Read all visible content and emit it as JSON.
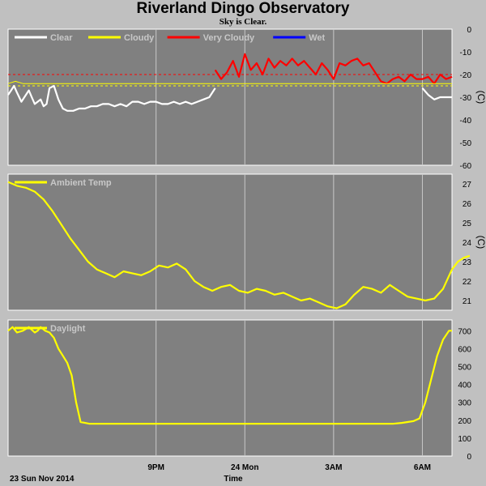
{
  "title": "Riverland Dingo Observatory",
  "subtitle": "Sky is Clear.",
  "footer": {
    "date": "23 Sun Nov 2014",
    "time_label": "Time"
  },
  "x_ticks": [
    {
      "t": 5.0,
      "label": "9PM"
    },
    {
      "t": 8.0,
      "label": "24 Mon"
    },
    {
      "t": 11.0,
      "label": "3AM"
    },
    {
      "t": 14.0,
      "label": "6AM"
    }
  ],
  "x_range_hours": [
    0,
    15.0
  ],
  "chart_data": [
    {
      "type": "line",
      "id": "cloud",
      "legend_placement": "top-left",
      "legend": [
        {
          "label": "Clear",
          "color": "#ffffff"
        },
        {
          "label": "Cloudy",
          "color": "#ffff00"
        },
        {
          "label": "Very Cloudy",
          "color": "#ff0000"
        },
        {
          "label": "Wet",
          "color": "#0000ff"
        }
      ],
      "ylabel": "(C)",
      "ylim": [
        -60,
        0
      ],
      "yticks": [
        0,
        -10,
        -20,
        -30,
        -40,
        -50,
        -60
      ],
      "thresholds": [
        {
          "value": -20,
          "color": "#ff0000"
        },
        {
          "value": -25,
          "color": "#ffff00"
        }
      ],
      "segments": [
        {
          "color": "#ffffff",
          "x": [
            0.0,
            0.1,
            0.2,
            0.3,
            0.45,
            0.55,
            0.7,
            0.8,
            0.9,
            1.0,
            1.1,
            1.2,
            1.3,
            1.4,
            1.55,
            1.7,
            1.85,
            2.0,
            2.2,
            2.4,
            2.6,
            2.8,
            3.0,
            3.2,
            3.4,
            3.6,
            3.8,
            4.0,
            4.2,
            4.4,
            4.6,
            4.8,
            5.0,
            5.2,
            5.4,
            5.6,
            5.8,
            6.0,
            6.2,
            6.4,
            6.6,
            6.8,
            7.0
          ],
          "y": [
            -29,
            -27,
            -25,
            -28,
            -32,
            -30,
            -27,
            -30,
            -33,
            -32,
            -31,
            -34,
            -33,
            -26,
            -25,
            -31,
            -35,
            -36,
            -36,
            -35,
            -35,
            -34,
            -34,
            -33,
            -33,
            -34,
            -33,
            -34,
            -32,
            -32,
            -33,
            -32,
            -32,
            -33,
            -33,
            -32,
            -33,
            -32,
            -33,
            -32,
            -31,
            -30,
            -26
          ]
        },
        {
          "color": "#ff0000",
          "x": [
            7.0,
            7.2,
            7.4,
            7.6,
            7.8,
            8.0,
            8.2,
            8.4,
            8.6,
            8.8,
            9.0,
            9.2,
            9.4,
            9.6,
            9.8,
            10.0,
            10.2,
            10.4,
            10.6,
            10.8,
            11.0,
            11.2,
            11.4,
            11.6,
            11.8,
            12.0,
            12.2,
            12.4,
            12.6,
            12.8,
            13.0,
            13.2,
            13.4,
            13.6,
            13.8,
            14.0,
            14.2,
            14.4,
            14.6,
            14.8,
            15.0
          ],
          "y": [
            -18,
            -22,
            -19,
            -14,
            -21,
            -11,
            -18,
            -15,
            -20,
            -13,
            -17,
            -14,
            -16,
            -13,
            -16,
            -14,
            -17,
            -20,
            -15,
            -18,
            -22,
            -15,
            -16,
            -14,
            -13,
            -16,
            -15,
            -19,
            -23,
            -24,
            -22,
            -21,
            -23,
            -20,
            -22,
            -22,
            -21,
            -24,
            -20,
            -22,
            -21
          ]
        },
        {
          "color": "#ffff00",
          "x": [
            0.0,
            0.25,
            0.5,
            0.75,
            1.0,
            1.25,
            1.5,
            1.75,
            2.0,
            2.25,
            2.5,
            2.75,
            3.0,
            3.25,
            3.5,
            3.75,
            4.0,
            4.25,
            4.5,
            4.75,
            5.0,
            5.25,
            5.5,
            5.75,
            6.0,
            6.25,
            6.5,
            6.75,
            7.0,
            7.25,
            7.5,
            7.75,
            8.0,
            8.25,
            8.5,
            8.75,
            9.0,
            9.25,
            9.5,
            9.75,
            10.0,
            10.25,
            10.5,
            10.75,
            11.0,
            11.25,
            11.5,
            11.75,
            12.0,
            12.25,
            12.5,
            12.75,
            13.0,
            13.25,
            13.5,
            13.75,
            14.0,
            14.25,
            14.5,
            14.75,
            15.0
          ],
          "y": [
            -24,
            -23,
            -24,
            -24,
            -24,
            -24,
            -24,
            -24,
            -24,
            -24,
            -24,
            -24,
            -24,
            -24,
            -24,
            -24,
            -24,
            -24,
            -24,
            -24,
            -24,
            -24,
            -24,
            -24,
            -24,
            -24,
            -24,
            -24,
            -24,
            -24,
            -24,
            -24,
            -24,
            -24,
            -24,
            -24,
            -24,
            -24,
            -24,
            -24,
            -24,
            -24,
            -24,
            -24,
            -24,
            -24,
            -24,
            -24,
            -24,
            -24,
            -24,
            -24,
            -24,
            -24,
            -24,
            -24,
            -24,
            -24,
            -24,
            -24,
            -24
          ]
        },
        {
          "color": "#ffffff",
          "x": [
            14.0,
            14.2,
            14.4,
            14.6,
            14.8,
            15.0
          ],
          "y": [
            -26,
            -29,
            -31,
            -30,
            -30,
            -30
          ]
        }
      ]
    },
    {
      "type": "line",
      "id": "temp",
      "legend_placement": "top-left",
      "legend": [
        {
          "label": "Ambient Temp",
          "color": "#ffff00"
        }
      ],
      "ylabel": "(C)",
      "ylim": [
        20.5,
        27.5
      ],
      "yticks": [
        21,
        22,
        23,
        24,
        25,
        26,
        27
      ],
      "series": [
        {
          "color": "#ffff00",
          "x": [
            0.0,
            0.3,
            0.6,
            0.9,
            1.2,
            1.5,
            1.8,
            2.1,
            2.4,
            2.7,
            3.0,
            3.3,
            3.6,
            3.9,
            4.2,
            4.5,
            4.8,
            5.1,
            5.4,
            5.7,
            6.0,
            6.3,
            6.6,
            6.9,
            7.2,
            7.5,
            7.8,
            8.1,
            8.4,
            8.7,
            9.0,
            9.3,
            9.6,
            9.9,
            10.2,
            10.5,
            10.8,
            11.1,
            11.4,
            11.7,
            12.0,
            12.3,
            12.6,
            12.9,
            13.2,
            13.5,
            13.8,
            14.1,
            14.4,
            14.7,
            15.0
          ],
          "y": [
            27.1,
            26.9,
            26.8,
            26.6,
            26.2,
            25.6,
            24.9,
            24.2,
            23.6,
            23.0,
            22.6,
            22.4,
            22.2,
            22.5,
            22.4,
            22.3,
            22.5,
            22.8,
            22.7,
            22.9,
            22.6,
            22.0,
            21.7,
            21.5,
            21.7,
            21.8,
            21.5,
            21.4,
            21.6,
            21.5,
            21.3,
            21.4,
            21.2,
            21.0,
            21.1,
            20.9,
            20.7,
            20.6,
            20.8,
            21.3,
            21.7,
            21.6,
            21.4,
            21.8,
            21.5,
            21.2,
            21.1,
            21.0,
            21.1,
            21.6,
            22.6
          ]
        },
        {
          "color": "#ffff00",
          "x": [
            15.0,
            15.2,
            15.4,
            15.6
          ],
          "y": [
            22.6,
            23.0,
            23.2,
            23.3
          ]
        }
      ]
    },
    {
      "type": "line",
      "id": "daylight",
      "legend_placement": "top-left",
      "legend": [
        {
          "label": "Daylight",
          "color": "#ffff00"
        }
      ],
      "ylabel": "",
      "ylim": [
        0,
        760
      ],
      "yticks": [
        0,
        100,
        200,
        300,
        400,
        500,
        600,
        700
      ],
      "series": [
        {
          "color": "#ffff00",
          "x": [
            0.0,
            0.15,
            0.3,
            0.5,
            0.7,
            0.9,
            1.0,
            1.1,
            1.25,
            1.4,
            1.55,
            1.7,
            1.85,
            2.0,
            2.15,
            2.3,
            2.45,
            2.6,
            2.75,
            2.9,
            3.0,
            3.2,
            3.4,
            3.6,
            3.8,
            4.0,
            5.0,
            6.0,
            7.0,
            8.0,
            9.0,
            10.0,
            11.0,
            12.0,
            12.5,
            13.0,
            13.3,
            13.5,
            13.7,
            13.9,
            14.1,
            14.3,
            14.5,
            14.7,
            14.9,
            15.0
          ],
          "y": [
            700,
            720,
            690,
            700,
            720,
            690,
            700,
            720,
            700,
            690,
            660,
            600,
            560,
            520,
            450,
            300,
            190,
            185,
            180,
            180,
            180,
            180,
            180,
            180,
            180,
            180,
            180,
            180,
            180,
            180,
            180,
            180,
            180,
            180,
            180,
            180,
            185,
            190,
            195,
            210,
            300,
            430,
            560,
            650,
            700,
            700
          ]
        }
      ]
    }
  ]
}
